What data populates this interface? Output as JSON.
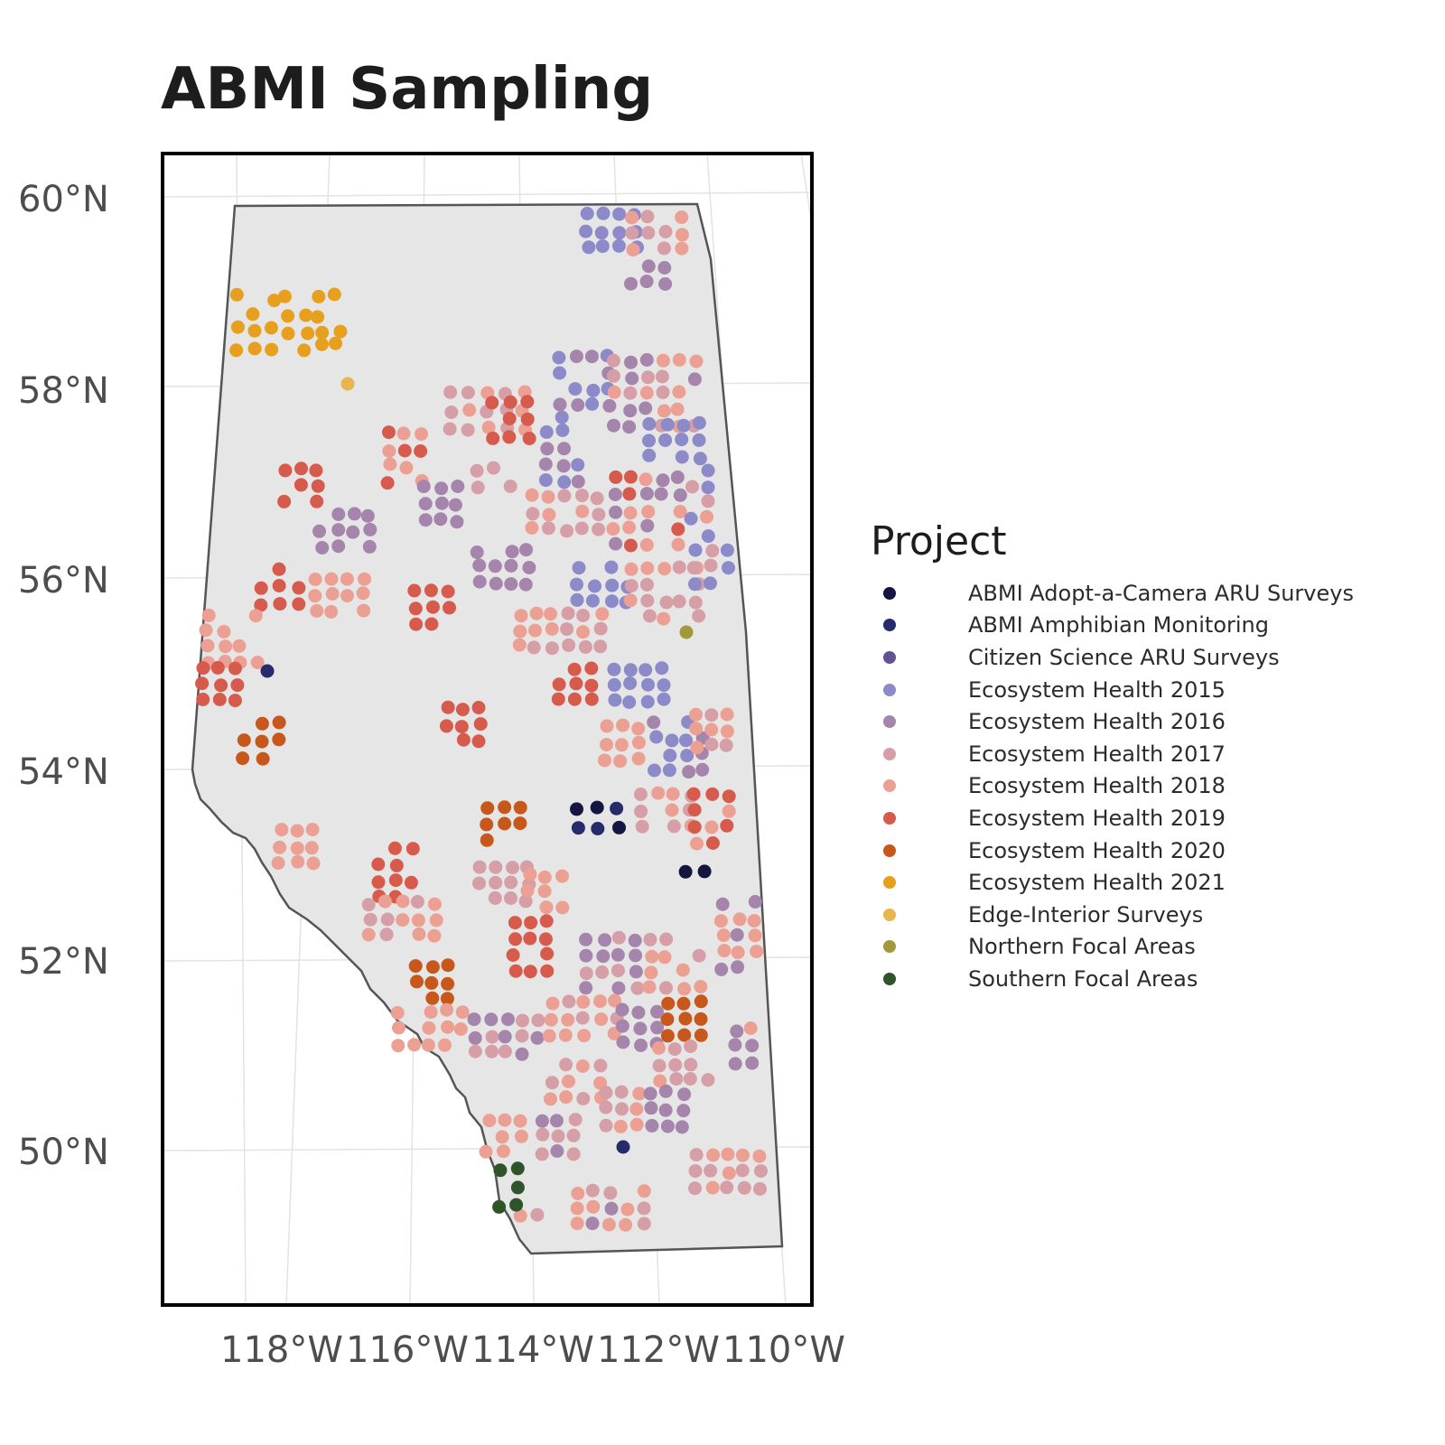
{
  "map": {
    "title": "ABMI Sampling",
    "lat_ticks": [
      "60°N",
      "58°N",
      "56°N",
      "54°N",
      "52°N",
      "50°N"
    ],
    "lon_ticks": [
      "118°W",
      "116°W",
      "114°W",
      "112°W",
      "110°W"
    ],
    "region_fill": "#e6e6e6",
    "region_stroke": "#555555",
    "frame_color": "#000000",
    "graticule_color": "#e3e3e3"
  },
  "legend": {
    "title": "Project",
    "items": [
      {
        "label": "ABMI Adopt-a-Camera ARU Surveys",
        "color": "#15163f"
      },
      {
        "label": "ABMI Amphibian Monitoring",
        "color": "#262b6b"
      },
      {
        "label": "Citizen Science ARU Surveys",
        "color": "#635293"
      },
      {
        "label": "Ecosystem Health 2015",
        "color": "#8c8ac8"
      },
      {
        "label": "Ecosystem Health 2016",
        "color": "#a585ac"
      },
      {
        "label": "Ecosystem Health 2017",
        "color": "#d69ea6"
      },
      {
        "label": "Ecosystem Health 2018",
        "color": "#eba093"
      },
      {
        "label": "Ecosystem Health 2019",
        "color": "#d65b4d"
      },
      {
        "label": "Ecosystem Health 2020",
        "color": "#c8571c"
      },
      {
        "label": "Ecosystem Health 2021",
        "color": "#e6a01e"
      },
      {
        "label": "Edge-Interior Surveys",
        "color": "#e7b64f"
      },
      {
        "label": "Northern Focal Areas",
        "color": "#a09a3c"
      },
      {
        "label": "Southern Focal Areas",
        "color": "#305429"
      }
    ]
  }
}
